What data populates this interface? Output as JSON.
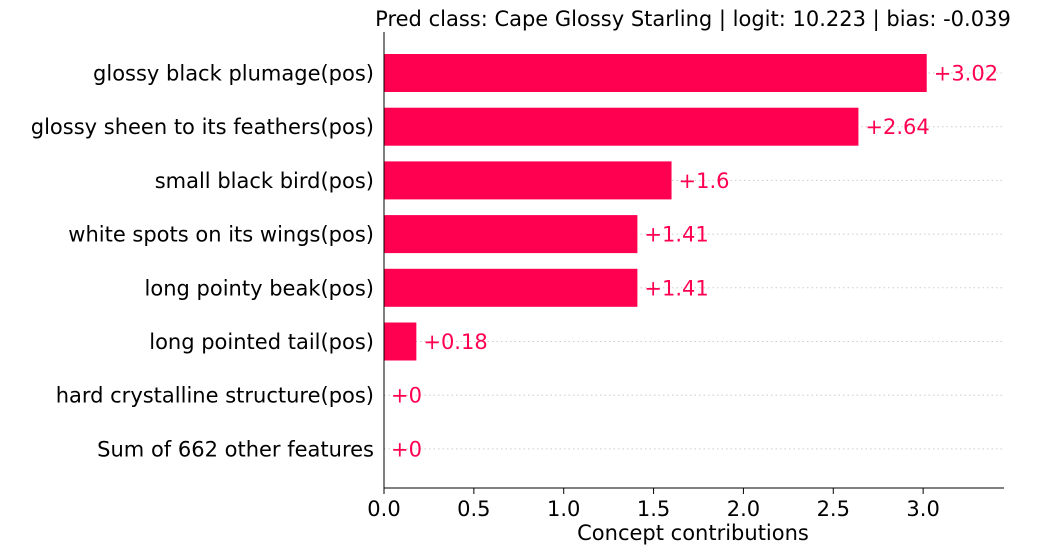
{
  "chart_data": {
    "type": "bar",
    "orientation": "horizontal",
    "title": "Pred class: Cape Glossy Starling | logit: 10.223 | bias: -0.039",
    "xlabel": "Concept contributions",
    "ylabel": "",
    "xlim": [
      0,
      3.45
    ],
    "xticks": [
      0.0,
      0.5,
      1.0,
      1.5,
      2.0,
      2.5,
      3.0
    ],
    "xtick_labels": [
      "0.0",
      "0.5",
      "1.0",
      "1.5",
      "2.0",
      "2.5",
      "3.0"
    ],
    "grid": "dotted horizontal lines per category",
    "categories": [
      "glossy black plumage(pos)",
      "glossy sheen to its feathers(pos)",
      "small black bird(pos)",
      "white spots on its wings(pos)",
      "long pointy beak(pos)",
      "long pointed tail(pos)",
      "hard crystalline structure(pos)",
      "Sum of 662 other features"
    ],
    "values": [
      3.02,
      2.64,
      1.6,
      1.41,
      1.41,
      0.18,
      0,
      0
    ],
    "value_labels": [
      "+3.02",
      "+2.64",
      "+1.6",
      "+1.41",
      "+1.41",
      "+0.18",
      "+0",
      "+0"
    ],
    "bar_color": "#ff0051"
  }
}
